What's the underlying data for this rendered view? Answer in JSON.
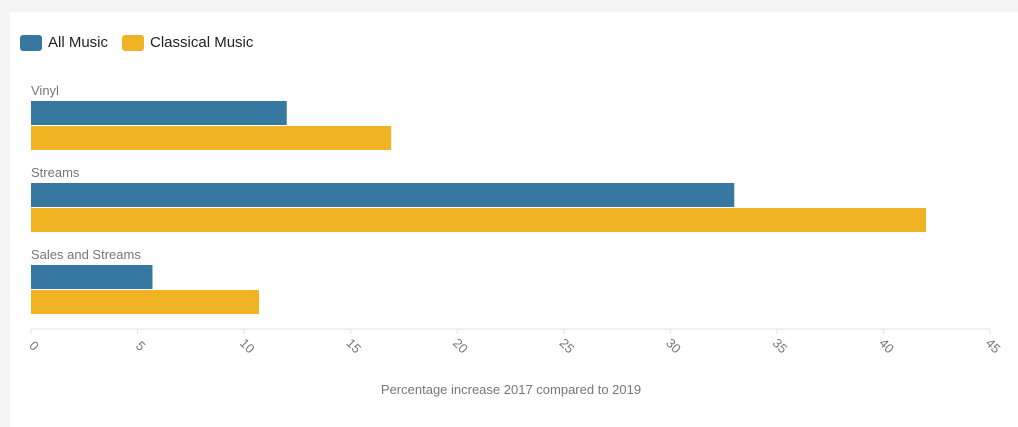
{
  "colors": {
    "all_music": "#36789f",
    "classical_music": "#f0b323",
    "text": "#777777",
    "axis": "#e3e3e3"
  },
  "legend": {
    "items": [
      {
        "label": "All Music"
      },
      {
        "label": "Classical Music"
      }
    ]
  },
  "chart_data": {
    "type": "bar",
    "orientation": "horizontal",
    "categories": [
      "Vinyl",
      "Streams",
      "Sales and Streams"
    ],
    "series": [
      {
        "name": "All Music",
        "values": [
          12,
          33,
          5.7
        ]
      },
      {
        "name": "Classical Music",
        "values": [
          16.9,
          42,
          10.7
        ]
      }
    ],
    "xlabel": "Percentage increase 2017 compared to 2019",
    "xlim": [
      0,
      45
    ],
    "xticks": [
      0,
      5,
      10,
      15,
      20,
      25,
      30,
      35,
      40,
      45
    ],
    "legend_position": "top-left",
    "grid": false
  }
}
